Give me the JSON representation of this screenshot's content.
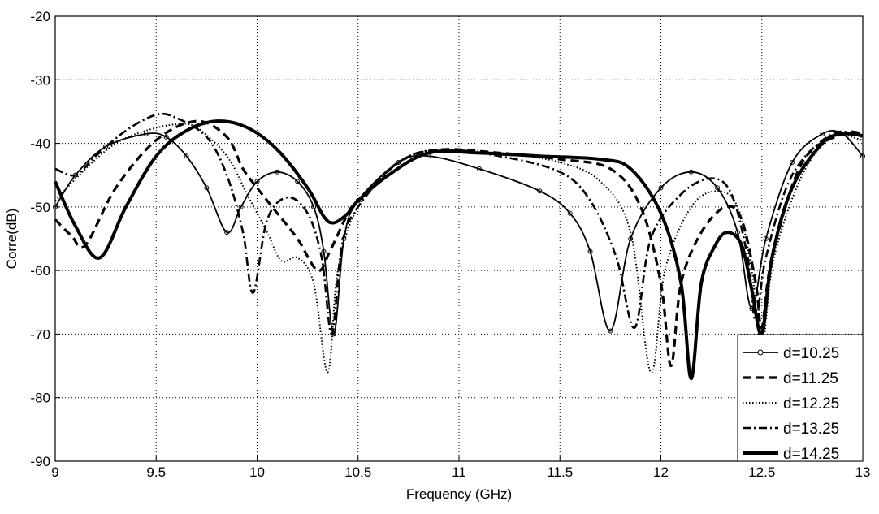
{
  "chart_data": {
    "type": "line",
    "title": "",
    "xlabel": "Frequency (GHz)",
    "ylabel": "Corre(dB)",
    "xlim": [
      9,
      13
    ],
    "ylim": [
      -90,
      -20
    ],
    "xticks": [
      9,
      9.5,
      10,
      10.5,
      11,
      11.5,
      12,
      12.5,
      13
    ],
    "xtick_labels": [
      "9",
      "9.5",
      "10",
      "10.5",
      "11",
      "11.5",
      "12",
      "12.5",
      "13"
    ],
    "yticks": [
      -90,
      -80,
      -70,
      -60,
      -50,
      -40,
      -30,
      -20
    ],
    "ytick_labels": [
      "-90",
      "-80",
      "-70",
      "-60",
      "-50",
      "-40",
      "-30",
      "-20"
    ],
    "grid": true,
    "legend_position": "bottom-right",
    "series": [
      {
        "name": "d=10.25",
        "style": "solid-circle",
        "points": [
          [
            9,
            -50
          ],
          [
            9.1,
            -45
          ],
          [
            9.25,
            -40.5
          ],
          [
            9.45,
            -38.5
          ],
          [
            9.55,
            -39
          ],
          [
            9.65,
            -42
          ],
          [
            9.75,
            -47
          ],
          [
            9.85,
            -54
          ],
          [
            9.92,
            -50
          ],
          [
            10,
            -46
          ],
          [
            10.1,
            -44.5
          ],
          [
            10.2,
            -46
          ],
          [
            10.28,
            -50
          ],
          [
            10.33,
            -57
          ],
          [
            10.38,
            -70
          ],
          [
            10.43,
            -55
          ],
          [
            10.5,
            -49
          ],
          [
            10.7,
            -43
          ],
          [
            10.85,
            -42
          ],
          [
            11.1,
            -44
          ],
          [
            11.4,
            -47.5
          ],
          [
            11.55,
            -51
          ],
          [
            11.65,
            -57
          ],
          [
            11.75,
            -69.5
          ],
          [
            11.85,
            -55
          ],
          [
            12,
            -47
          ],
          [
            12.15,
            -44.5
          ],
          [
            12.28,
            -47
          ],
          [
            12.38,
            -54
          ],
          [
            12.45,
            -66
          ],
          [
            12.52,
            -55
          ],
          [
            12.65,
            -43
          ],
          [
            12.8,
            -38.5
          ],
          [
            12.9,
            -38.5
          ],
          [
            13,
            -42
          ]
        ]
      },
      {
        "name": "d=11.25",
        "style": "dashed",
        "points": [
          [
            9,
            -52
          ],
          [
            9.08,
            -54.5
          ],
          [
            9.15,
            -56
          ],
          [
            9.3,
            -47
          ],
          [
            9.5,
            -39.5
          ],
          [
            9.7,
            -36.5
          ],
          [
            9.85,
            -39
          ],
          [
            9.93,
            -44
          ],
          [
            10.0,
            -47
          ],
          [
            10.1,
            -51
          ],
          [
            10.2,
            -55
          ],
          [
            10.3,
            -60
          ],
          [
            10.36,
            -57
          ],
          [
            10.45,
            -51
          ],
          [
            10.5,
            -49
          ],
          [
            10.7,
            -43
          ],
          [
            10.9,
            -41
          ],
          [
            11.2,
            -41.5
          ],
          [
            11.5,
            -42.5
          ],
          [
            11.75,
            -44
          ],
          [
            11.9,
            -50
          ],
          [
            12,
            -62
          ],
          [
            12.05,
            -75
          ],
          [
            12.1,
            -62
          ],
          [
            12.2,
            -54
          ],
          [
            12.32,
            -50
          ],
          [
            12.4,
            -52
          ],
          [
            12.47,
            -62
          ],
          [
            12.5,
            -69
          ],
          [
            12.55,
            -58
          ],
          [
            12.7,
            -43
          ],
          [
            12.9,
            -38.5
          ],
          [
            13,
            -38.5
          ]
        ]
      },
      {
        "name": "d=12.25",
        "style": "dotted",
        "points": [
          [
            9,
            -49
          ],
          [
            9.15,
            -44
          ],
          [
            9.3,
            -40
          ],
          [
            9.45,
            -38
          ],
          [
            9.6,
            -37
          ],
          [
            9.7,
            -37.5
          ],
          [
            9.85,
            -42
          ],
          [
            9.95,
            -48
          ],
          [
            10.05,
            -54
          ],
          [
            10.12,
            -58.5
          ],
          [
            10.2,
            -58
          ],
          [
            10.28,
            -62
          ],
          [
            10.35,
            -76
          ],
          [
            10.4,
            -60
          ],
          [
            10.5,
            -50
          ],
          [
            10.7,
            -43
          ],
          [
            10.9,
            -41
          ],
          [
            11.2,
            -41.5
          ],
          [
            11.5,
            -43
          ],
          [
            11.7,
            -46
          ],
          [
            11.85,
            -54
          ],
          [
            11.95,
            -76
          ],
          [
            12.02,
            -60
          ],
          [
            12.15,
            -50
          ],
          [
            12.28,
            -47.5
          ],
          [
            12.38,
            -50
          ],
          [
            12.45,
            -60
          ],
          [
            12.5,
            -72
          ],
          [
            12.56,
            -58
          ],
          [
            12.7,
            -45
          ],
          [
            12.85,
            -39
          ],
          [
            13,
            -39.5
          ]
        ]
      },
      {
        "name": "d=13.25",
        "style": "dashdot",
        "points": [
          [
            9,
            -44
          ],
          [
            9.1,
            -45
          ],
          [
            9.2,
            -42
          ],
          [
            9.35,
            -38
          ],
          [
            9.5,
            -35.5
          ],
          [
            9.6,
            -36
          ],
          [
            9.75,
            -39
          ],
          [
            9.85,
            -45
          ],
          [
            9.93,
            -54
          ],
          [
            9.98,
            -63.5
          ],
          [
            10.05,
            -52
          ],
          [
            10.15,
            -48.5
          ],
          [
            10.25,
            -51
          ],
          [
            10.32,
            -58
          ],
          [
            10.37,
            -70
          ],
          [
            10.42,
            -56
          ],
          [
            10.5,
            -50
          ],
          [
            10.7,
            -43
          ],
          [
            10.9,
            -41
          ],
          [
            11.2,
            -42
          ],
          [
            11.5,
            -44.5
          ],
          [
            11.65,
            -49
          ],
          [
            11.78,
            -58
          ],
          [
            11.87,
            -69
          ],
          [
            11.95,
            -55
          ],
          [
            12.1,
            -48
          ],
          [
            12.25,
            -45.5
          ],
          [
            12.35,
            -48
          ],
          [
            12.43,
            -58
          ],
          [
            12.47,
            -68
          ],
          [
            12.52,
            -58
          ],
          [
            12.65,
            -45
          ],
          [
            12.85,
            -38.5
          ],
          [
            13,
            -39
          ]
        ]
      },
      {
        "name": "d=14.25",
        "style": "thick",
        "points": [
          [
            9,
            -46
          ],
          [
            9.1,
            -53
          ],
          [
            9.22,
            -58
          ],
          [
            9.35,
            -50
          ],
          [
            9.5,
            -42
          ],
          [
            9.65,
            -38
          ],
          [
            9.8,
            -36.5
          ],
          [
            9.95,
            -37.5
          ],
          [
            10.1,
            -41
          ],
          [
            10.25,
            -47
          ],
          [
            10.33,
            -51.5
          ],
          [
            10.38,
            -52.5
          ],
          [
            10.45,
            -51
          ],
          [
            10.5,
            -49
          ],
          [
            10.65,
            -45
          ],
          [
            10.85,
            -41.5
          ],
          [
            11.1,
            -41.5
          ],
          [
            11.4,
            -42
          ],
          [
            11.7,
            -42.5
          ],
          [
            11.85,
            -44
          ],
          [
            12,
            -51
          ],
          [
            12.1,
            -62
          ],
          [
            12.15,
            -77
          ],
          [
            12.2,
            -62
          ],
          [
            12.27,
            -56
          ],
          [
            12.33,
            -54
          ],
          [
            12.4,
            -56
          ],
          [
            12.45,
            -63
          ],
          [
            12.5,
            -70
          ],
          [
            12.55,
            -58
          ],
          [
            12.65,
            -47
          ],
          [
            12.8,
            -40
          ],
          [
            12.9,
            -38.5
          ],
          [
            13,
            -38.8
          ]
        ]
      }
    ]
  }
}
